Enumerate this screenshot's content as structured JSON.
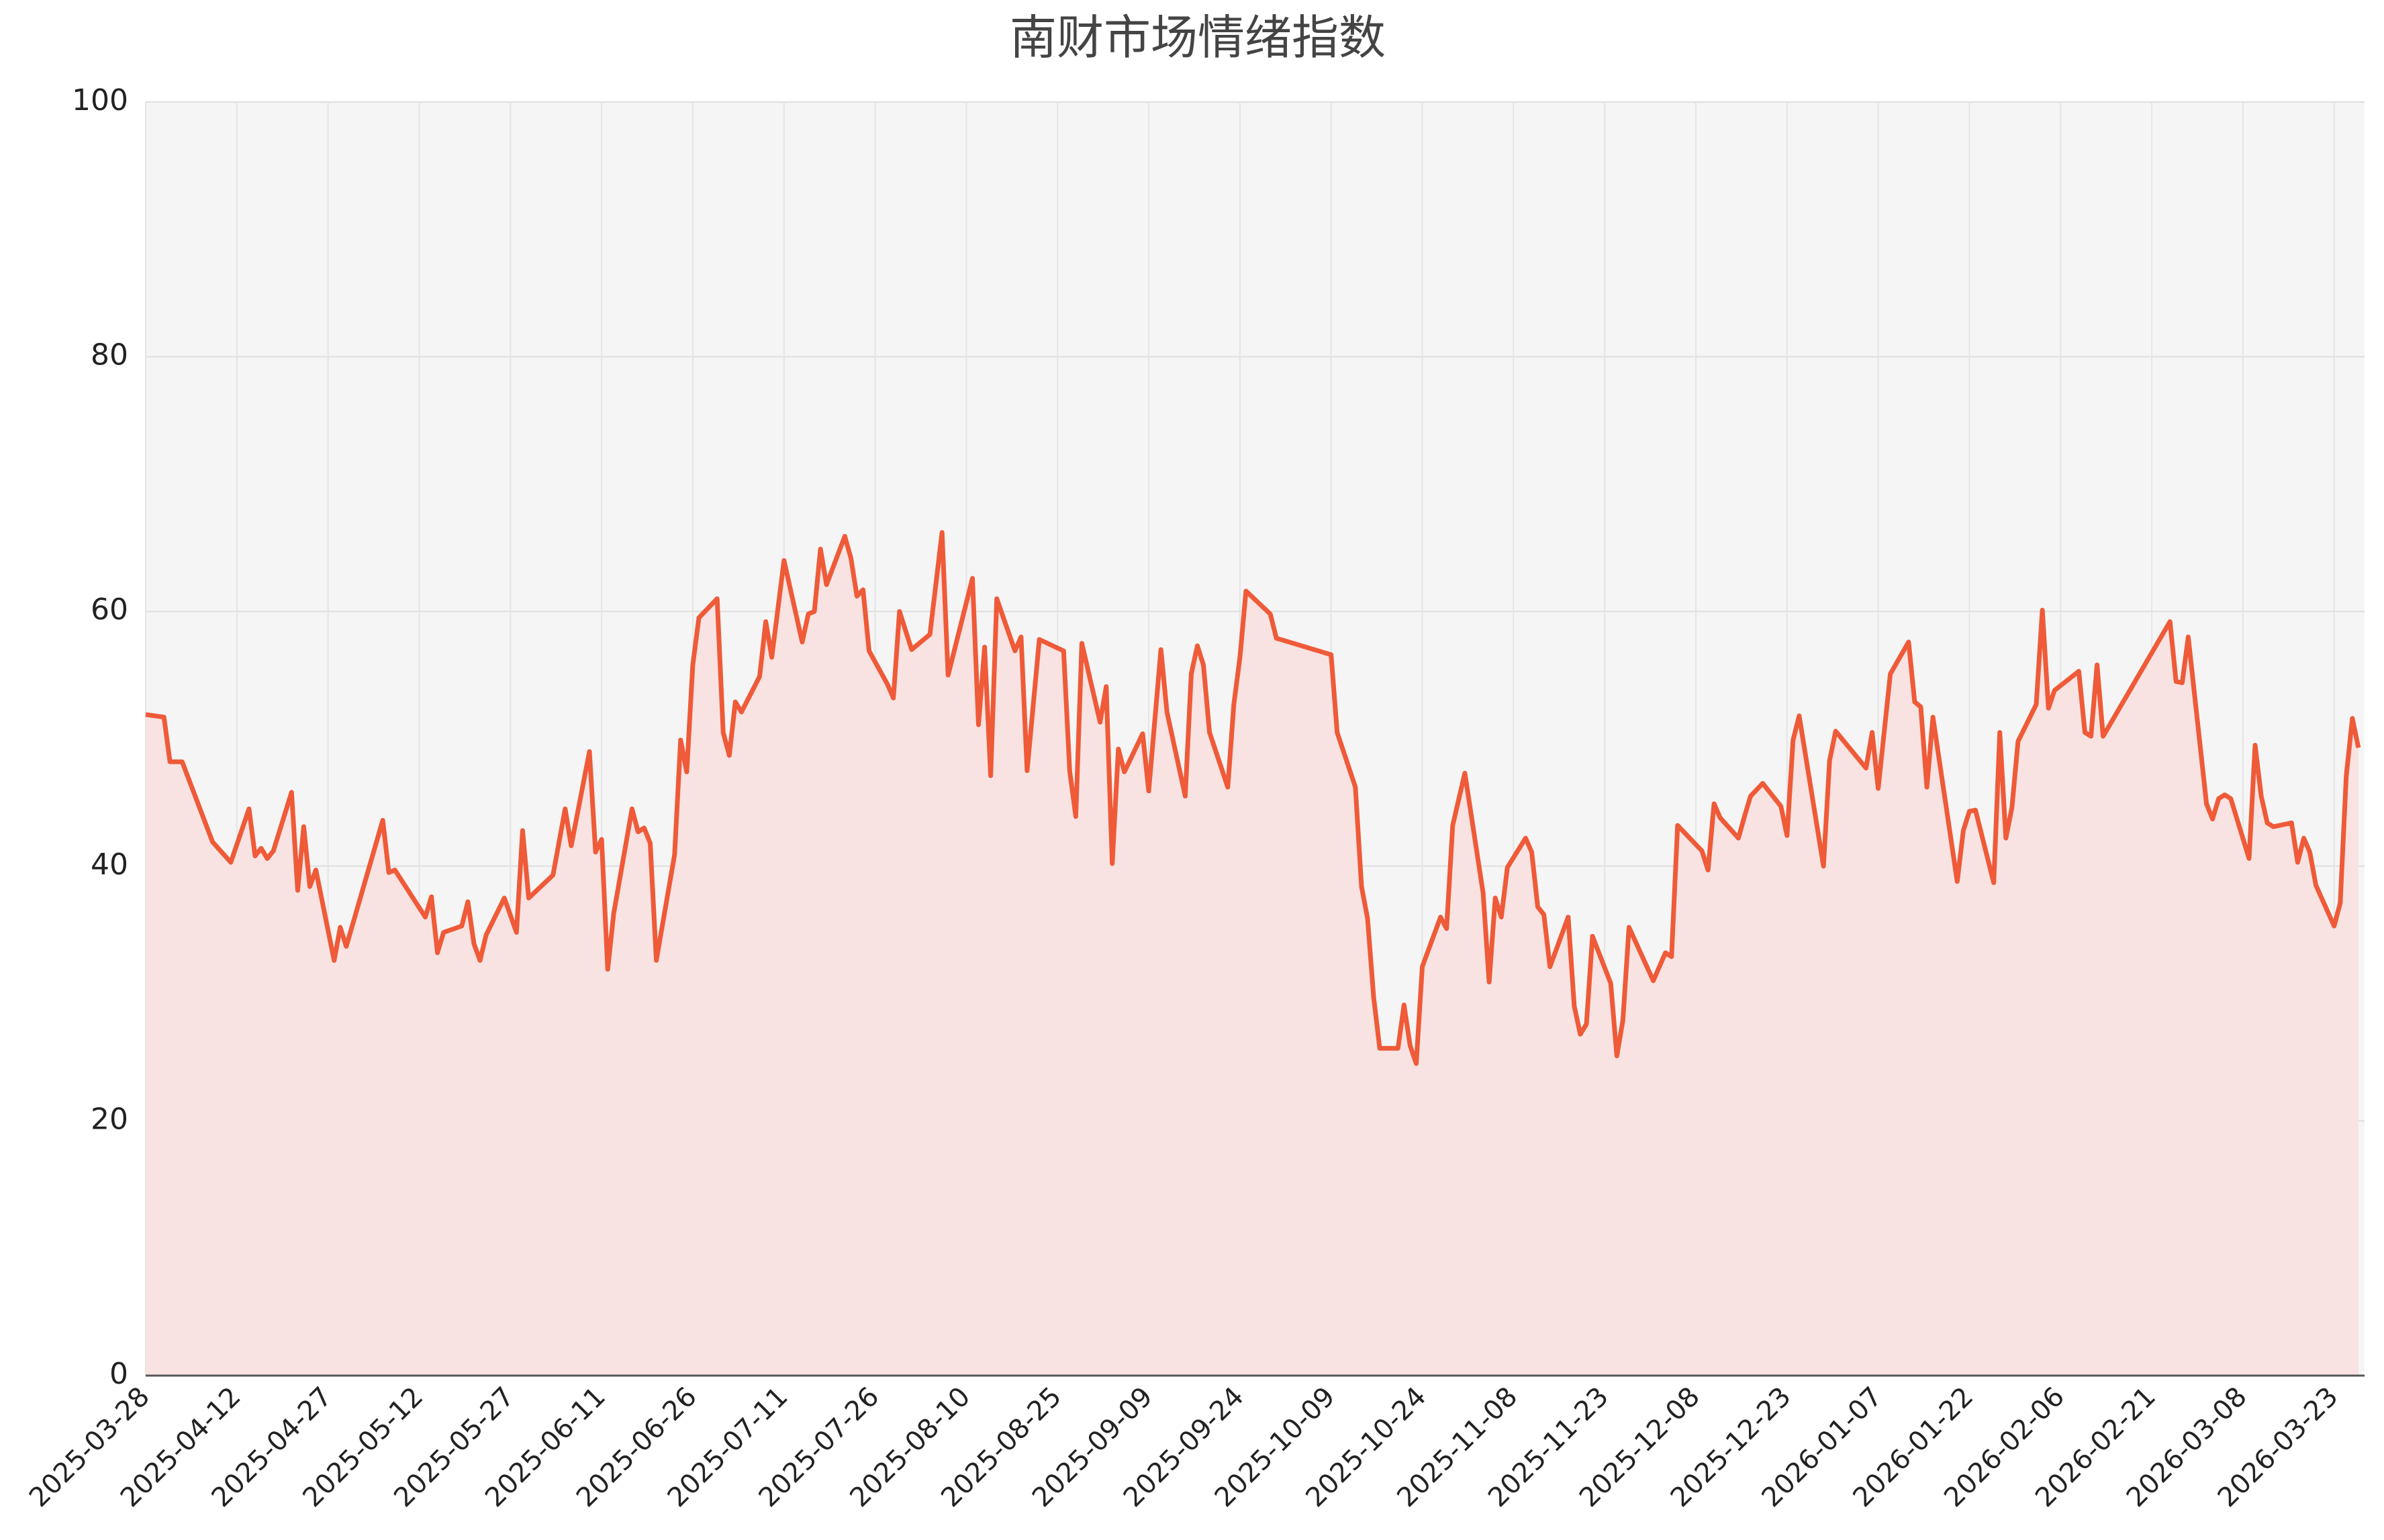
{
  "chart_data": {
    "type": "line",
    "title": "南财市场情绪指数",
    "x": [
      "2025-03-28",
      "2025-03-31",
      "2025-04-01",
      "2025-04-03",
      "2025-04-08",
      "2025-04-11",
      "2025-04-14",
      "2025-04-15",
      "2025-04-16",
      "2025-04-17",
      "2025-04-18",
      "2025-04-21",
      "2025-04-22",
      "2025-04-23",
      "2025-04-24",
      "2025-04-25",
      "2025-04-28",
      "2025-04-29",
      "2025-04-30",
      "2025-05-06",
      "2025-05-07",
      "2025-05-08",
      "2025-05-13",
      "2025-05-14",
      "2025-05-15",
      "2025-05-16",
      "2025-05-19",
      "2025-05-20",
      "2025-05-21",
      "2025-05-22",
      "2025-05-23",
      "2025-05-26",
      "2025-05-28",
      "2025-05-29",
      "2025-05-30",
      "2025-06-03",
      "2025-06-05",
      "2025-06-06",
      "2025-06-09",
      "2025-06-10",
      "2025-06-11",
      "2025-06-12",
      "2025-06-13",
      "2025-06-16",
      "2025-06-17",
      "2025-06-18",
      "2025-06-19",
      "2025-06-20",
      "2025-06-23",
      "2025-06-24",
      "2025-06-25",
      "2025-06-26",
      "2025-06-27",
      "2025-06-30",
      "2025-07-01",
      "2025-07-02",
      "2025-07-03",
      "2025-07-04",
      "2025-07-07",
      "2025-07-08",
      "2025-07-09",
      "2025-07-11",
      "2025-07-14",
      "2025-07-15",
      "2025-07-16",
      "2025-07-17",
      "2025-07-18",
      "2025-07-21",
      "2025-07-22",
      "2025-07-23",
      "2025-07-24",
      "2025-07-25",
      "2025-07-28",
      "2025-07-29",
      "2025-07-30",
      "2025-08-01",
      "2025-08-04",
      "2025-08-06",
      "2025-08-07",
      "2025-08-11",
      "2025-08-12",
      "2025-08-13",
      "2025-08-14",
      "2025-08-15",
      "2025-08-18",
      "2025-08-19",
      "2025-08-20",
      "2025-08-22",
      "2025-08-26",
      "2025-08-27",
      "2025-08-28",
      "2025-08-29",
      "2025-09-01",
      "2025-09-02",
      "2025-09-03",
      "2025-09-04",
      "2025-09-05",
      "2025-09-08",
      "2025-09-09",
      "2025-09-11",
      "2025-09-12",
      "2025-09-15",
      "2025-09-16",
      "2025-09-17",
      "2025-09-18",
      "2025-09-19",
      "2025-09-22",
      "2025-09-23",
      "2025-09-24",
      "2025-09-25",
      "2025-09-29",
      "2025-09-30",
      "2025-10-09",
      "2025-10-10",
      "2025-10-13",
      "2025-10-14",
      "2025-10-15",
      "2025-10-16",
      "2025-10-17",
      "2025-10-20",
      "2025-10-21",
      "2025-10-22",
      "2025-10-23",
      "2025-10-24",
      "2025-10-27",
      "2025-10-28",
      "2025-10-29",
      "2025-10-31",
      "2025-11-03",
      "2025-11-04",
      "2025-11-05",
      "2025-11-06",
      "2025-11-07",
      "2025-11-10",
      "2025-11-11",
      "2025-11-12",
      "2025-11-13",
      "2025-11-14",
      "2025-11-17",
      "2025-11-18",
      "2025-11-19",
      "2025-11-20",
      "2025-11-21",
      "2025-11-24",
      "2025-11-25",
      "2025-11-26",
      "2025-11-27",
      "2025-12-01",
      "2025-12-03",
      "2025-12-04",
      "2025-12-05",
      "2025-12-09",
      "2025-12-10",
      "2025-12-11",
      "2025-12-12",
      "2025-12-15",
      "2025-12-16",
      "2025-12-17",
      "2025-12-19",
      "2025-12-22",
      "2025-12-23",
      "2025-12-24",
      "2025-12-25",
      "2025-12-29",
      "2025-12-30",
      "2025-12-31",
      "2026-01-05",
      "2026-01-06",
      "2026-01-07",
      "2026-01-09",
      "2026-01-12",
      "2026-01-13",
      "2026-01-14",
      "2026-01-15",
      "2026-01-16",
      "2026-01-20",
      "2026-01-21",
      "2026-01-22",
      "2026-01-23",
      "2026-01-26",
      "2026-01-27",
      "2026-01-28",
      "2026-01-29",
      "2026-01-30",
      "2026-02-02",
      "2026-02-03",
      "2026-02-04",
      "2026-02-05",
      "2026-02-09",
      "2026-02-10",
      "2026-02-11",
      "2026-02-12",
      "2026-02-13",
      "2026-02-24",
      "2026-02-25",
      "2026-02-26",
      "2026-02-27",
      "2026-03-02",
      "2026-03-03",
      "2026-03-04",
      "2026-03-05",
      "2026-03-06",
      "2026-03-09",
      "2026-03-10",
      "2026-03-11",
      "2026-03-12",
      "2026-03-13",
      "2026-03-16",
      "2026-03-17",
      "2026-03-18",
      "2026-03-19",
      "2026-03-20",
      "2026-03-23",
      "2026-03-24",
      "2026-03-25",
      "2026-03-26",
      "2026-03-27"
    ],
    "values": [
      51.9,
      51.7,
      48.2,
      48.2,
      41.9,
      40.3,
      44.5,
      40.8,
      41.4,
      40.6,
      41.2,
      45.8,
      38.1,
      43.1,
      38.4,
      39.7,
      32.6,
      35.2,
      33.7,
      43.6,
      39.5,
      39.7,
      36.0,
      37.6,
      33.2,
      34.8,
      35.3,
      37.2,
      33.9,
      32.6,
      34.6,
      37.5,
      34.8,
      42.8,
      37.5,
      39.3,
      44.5,
      41.6,
      49.0,
      41.1,
      42.1,
      31.9,
      36.3,
      44.5,
      42.7,
      43.0,
      41.8,
      32.6,
      40.9,
      49.9,
      47.4,
      55.8,
      59.5,
      61.0,
      50.5,
      48.7,
      52.9,
      52.1,
      54.9,
      59.2,
      56.4,
      64.0,
      57.6,
      59.8,
      60.0,
      64.9,
      62.1,
      65.9,
      64.2,
      61.2,
      61.7,
      56.9,
      54.3,
      53.2,
      60.0,
      57.0,
      58.2,
      66.2,
      55.0,
      62.6,
      51.1,
      57.2,
      47.1,
      61.0,
      56.9,
      58.0,
      47.5,
      57.8,
      56.9,
      47.5,
      43.9,
      57.5,
      51.3,
      54.1,
      40.2,
      49.2,
      47.4,
      50.4,
      45.9,
      57.0,
      52.1,
      45.5,
      55.1,
      57.3,
      55.8,
      50.5,
      46.2,
      52.7,
      56.4,
      61.6,
      59.8,
      57.9,
      56.6,
      50.5,
      46.2,
      38.4,
      35.9,
      29.7,
      25.7,
      25.7,
      29.1,
      25.9,
      24.5,
      32.1,
      36.0,
      35.1,
      43.2,
      47.3,
      37.9,
      30.9,
      37.5,
      36.0,
      39.9,
      42.2,
      41.1,
      36.8,
      36.2,
      32.1,
      36.0,
      29.0,
      26.8,
      27.6,
      34.5,
      30.8,
      25.1,
      27.9,
      35.2,
      31.0,
      33.2,
      32.9,
      43.2,
      41.2,
      39.7,
      44.9,
      43.8,
      42.2,
      43.9,
      45.5,
      46.5,
      44.7,
      42.4,
      49.9,
      51.8,
      40.0,
      48.3,
      50.6,
      47.7,
      50.5,
      46.1,
      55.1,
      57.6,
      52.9,
      52.5,
      46.2,
      51.7,
      38.8,
      42.8,
      44.3,
      44.4,
      38.7,
      50.5,
      42.2,
      44.6,
      49.8,
      52.7,
      60.1,
      52.4,
      53.8,
      55.3,
      50.5,
      50.2,
      55.8,
      50.2,
      59.2,
      54.5,
      54.4,
      58.0,
      44.9,
      43.7,
      45.3,
      45.6,
      45.3,
      40.6,
      49.5,
      45.5,
      43.4,
      43.1,
      43.4,
      40.3,
      42.2,
      41.1,
      38.5,
      35.3,
      37.1,
      47.1,
      51.6,
      49.3
    ],
    "color": "#ef5a38",
    "fill_color": "#f8e3e2",
    "fill": true,
    "grid": true,
    "xlim": [
      "2025-03-28",
      "2026-03-28"
    ],
    "xticks": [
      "2025-03-28",
      "2025-04-12",
      "2025-04-27",
      "2025-05-12",
      "2025-05-27",
      "2025-06-11",
      "2025-06-26",
      "2025-07-11",
      "2025-07-26",
      "2025-08-10",
      "2025-08-25",
      "2025-09-09",
      "2025-09-24",
      "2025-10-09",
      "2025-10-24",
      "2025-11-08",
      "2025-11-23",
      "2025-12-08",
      "2025-12-23",
      "2026-01-07",
      "2026-01-22",
      "2026-02-06",
      "2026-02-21",
      "2026-03-08",
      "2026-03-23"
    ],
    "ylim": [
      0,
      100
    ],
    "yticks": [
      0,
      20,
      40,
      60,
      80,
      100
    ]
  }
}
